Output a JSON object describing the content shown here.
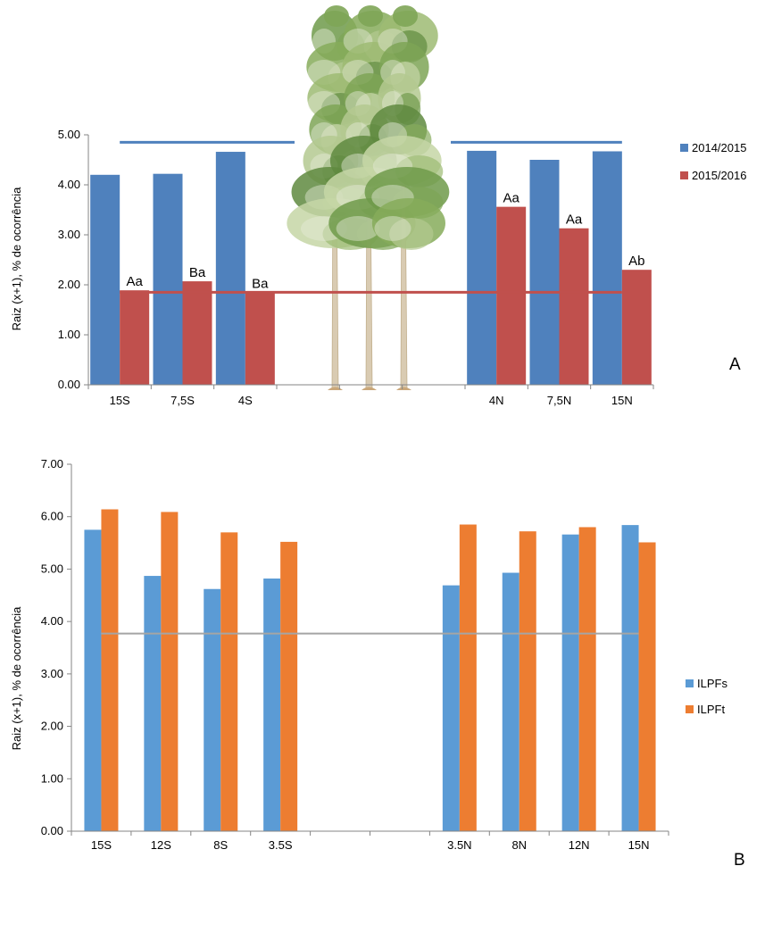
{
  "chart_data": [
    {
      "type": "bar",
      "panel_label": "A",
      "ylabel": "Raiz (x+1), % de ocorrência",
      "ylim": [
        0,
        5
      ],
      "yticks": [
        "0.00",
        "1.00",
        "2.00",
        "3.00",
        "4.00",
        "5.00"
      ],
      "categories": [
        "15S",
        "7,5S",
        "4S",
        "",
        "",
        "",
        "4N",
        "7,5N",
        "15N"
      ],
      "series": [
        {
          "name": "2014/2015",
          "color": "#4F81BD",
          "values": [
            4.2,
            4.22,
            4.66,
            null,
            null,
            null,
            4.68,
            4.5,
            4.67
          ]
        },
        {
          "name": "2015/2016",
          "color": "#C0504D",
          "values": [
            1.89,
            2.07,
            1.85,
            null,
            null,
            null,
            3.56,
            3.13,
            2.3
          ],
          "labels": [
            "Aa",
            "Ba",
            "Ba",
            "",
            "",
            "",
            "Aa",
            "Aa",
            "Ab"
          ]
        }
      ],
      "reference_lines": [
        {
          "series": "2014/2015",
          "value": 4.85,
          "color": "#4F81BD"
        },
        {
          "series": "2015/2016",
          "value": 1.85,
          "color": "#C0504D"
        }
      ],
      "decoration_icon": "eucalyptus-trees-icon",
      "grid": false,
      "legend": "right"
    },
    {
      "type": "bar",
      "panel_label": "B",
      "ylabel": "Raiz (x+1), % de ocorrência",
      "ylim": [
        0,
        7
      ],
      "yticks": [
        "0.00",
        "1.00",
        "2.00",
        "3.00",
        "4.00",
        "5.00",
        "6.00",
        "7.00"
      ],
      "categories": [
        "15S",
        "12S",
        "8S",
        "3.5S",
        "",
        "",
        "3.5N",
        "8N",
        "12N",
        "15N"
      ],
      "series": [
        {
          "name": "ILPFs",
          "color": "#5B9BD5",
          "values": [
            5.75,
            4.87,
            4.62,
            4.82,
            null,
            null,
            4.69,
            4.93,
            5.66,
            5.84
          ]
        },
        {
          "name": "ILPFt",
          "color": "#ED7D31",
          "values": [
            6.14,
            6.09,
            5.7,
            5.52,
            null,
            null,
            5.85,
            5.72,
            5.8,
            5.51
          ]
        }
      ],
      "reference_lines": [
        {
          "value": 3.77,
          "color": "#A5A5A5"
        }
      ],
      "grid": false,
      "legend": "right"
    }
  ]
}
